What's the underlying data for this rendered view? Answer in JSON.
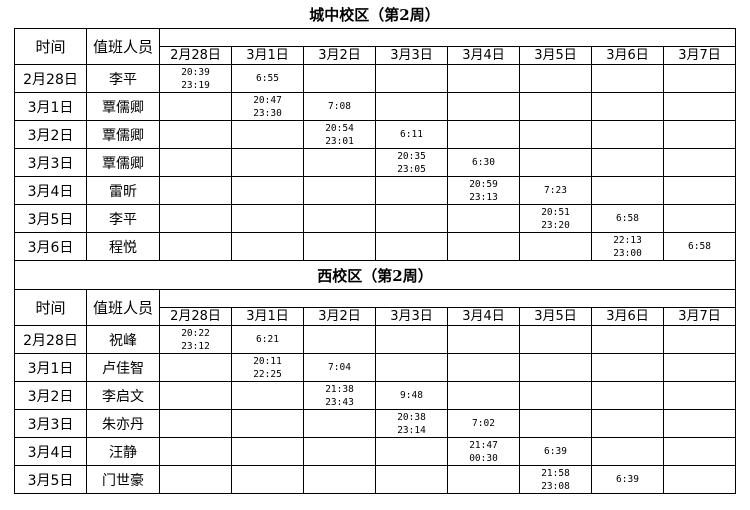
{
  "columns": {
    "time": "时间",
    "person": "值班人员"
  },
  "dates": [
    "2月28日",
    "3月1日",
    "3月2日",
    "3月3日",
    "3月4日",
    "3月5日",
    "3月6日",
    "3月7日"
  ],
  "sections": [
    {
      "title": "城中校区（第2周）",
      "rows": [
        {
          "date": "2月28日",
          "person": "李平",
          "cells": [
            "20:39\n23:19",
            "6:55",
            "",
            "",
            "",
            "",
            "",
            ""
          ]
        },
        {
          "date": "3月1日",
          "person": "覃儒卿",
          "cells": [
            "",
            "20:47\n23:30",
            "7:08",
            "",
            "",
            "",
            "",
            ""
          ]
        },
        {
          "date": "3月2日",
          "person": "覃儒卿",
          "cells": [
            "",
            "",
            "20:54\n23:01",
            "6:11",
            "",
            "",
            "",
            ""
          ]
        },
        {
          "date": "3月3日",
          "person": "覃儒卿",
          "cells": [
            "",
            "",
            "",
            "20:35\n23:05",
            "6:30",
            "",
            "",
            ""
          ]
        },
        {
          "date": "3月4日",
          "person": "雷昕",
          "cells": [
            "",
            "",
            "",
            "",
            "20:59\n23:13",
            "7:23",
            "",
            ""
          ]
        },
        {
          "date": "3月5日",
          "person": "李平",
          "cells": [
            "",
            "",
            "",
            "",
            "",
            "20:51\n23:20",
            "6:58",
            ""
          ]
        },
        {
          "date": "3月6日",
          "person": "程悦",
          "cells": [
            "",
            "",
            "",
            "",
            "",
            "",
            "22:13\n23:00",
            "6:58"
          ]
        }
      ]
    },
    {
      "title": "西校区（第2周）",
      "rows": [
        {
          "date": "2月28日",
          "person": "祝峰",
          "cells": [
            "20:22\n23:12",
            "6:21",
            "",
            "",
            "",
            "",
            "",
            ""
          ]
        },
        {
          "date": "3月1日",
          "person": "卢佳智",
          "cells": [
            "",
            "20:11\n22:25",
            "7:04",
            "",
            "",
            "",
            "",
            ""
          ]
        },
        {
          "date": "3月2日",
          "person": "李启文",
          "cells": [
            "",
            "",
            "21:38\n23:43",
            "9:48",
            "",
            "",
            "",
            ""
          ]
        },
        {
          "date": "3月3日",
          "person": "朱亦丹",
          "cells": [
            "",
            "",
            "",
            "20:38\n23:14",
            "7:02",
            "",
            "",
            ""
          ]
        },
        {
          "date": "3月4日",
          "person": "汪静",
          "cells": [
            "",
            "",
            "",
            "",
            "21:47\n00:30",
            "6:39",
            "",
            ""
          ]
        },
        {
          "date": "3月5日",
          "person": "门世豪",
          "cells": [
            "",
            "",
            "",
            "",
            "",
            "21:58\n23:08",
            "6:39",
            ""
          ]
        }
      ]
    }
  ]
}
